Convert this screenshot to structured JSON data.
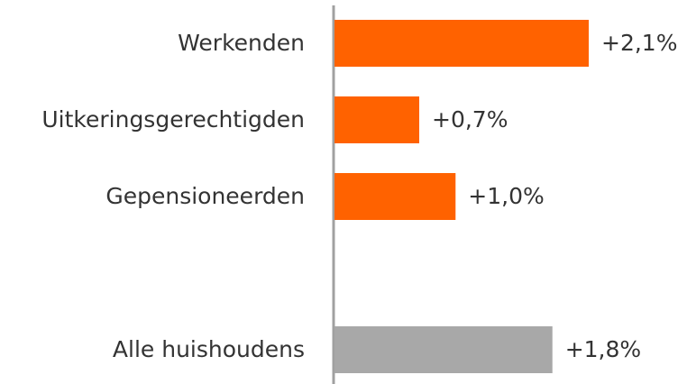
{
  "chart_data": {
    "type": "hbar",
    "categories": [
      "Werkenden",
      "Uitkeringsgerechtigden",
      "Gepensioneerden",
      null,
      "Alle huishoudens"
    ],
    "values": [
      2.1,
      0.7,
      1.0,
      null,
      1.8
    ],
    "value_labels": [
      "+2,1%",
      "+0,7%",
      "+1,0%",
      null,
      "+1,8%"
    ],
    "colors": [
      "#ff6200",
      "#ff6200",
      "#ff6200",
      null,
      "#a8a8a8"
    ]
  }
}
